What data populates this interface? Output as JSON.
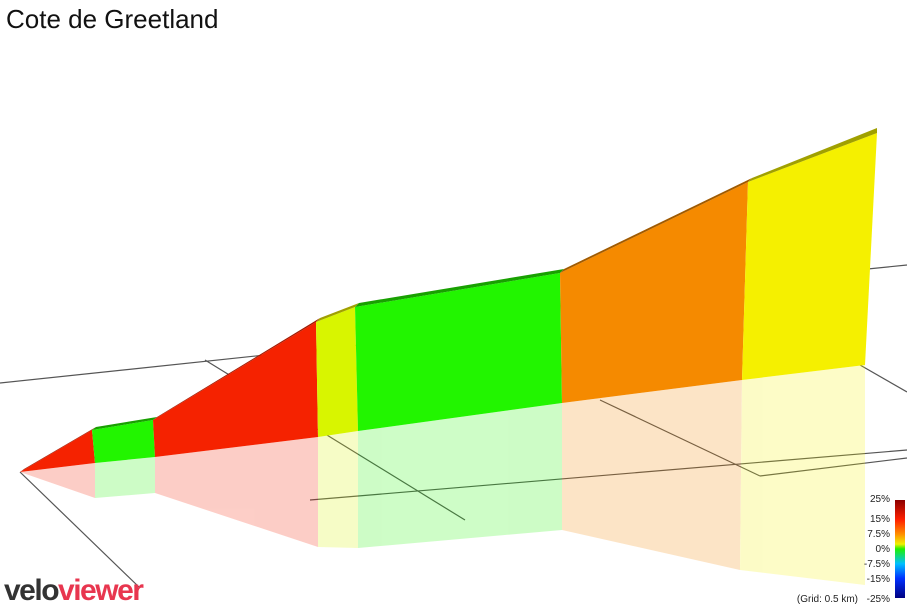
{
  "header": {
    "title": "Cote de Greetland"
  },
  "legend": {
    "labels": [
      "25%",
      "15%",
      "7.5%",
      "0%",
      "-7.5%",
      "-15%",
      "-25%"
    ],
    "grid_note": "(Grid: 0.5 km)"
  },
  "logo": {
    "part1": "velo",
    "part2": "viewer"
  }
}
